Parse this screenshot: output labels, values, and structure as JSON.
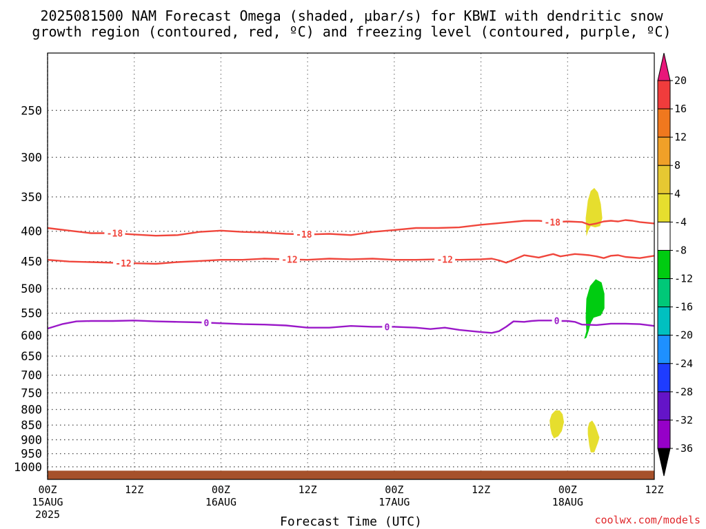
{
  "chart_data": {
    "type": "contour",
    "title_line1": "2025081500 NAM Forecast Omega (shaded, μbar/s) for KBWI with dendritic snow",
    "title_line2": "growth region (contoured, red, ºC) and freezing level (contoured, purple, ºC)",
    "xlabel": "Forecast Time (UTC)",
    "credit": "coolwx.com/models",
    "x_range_hours": [
      0,
      84
    ],
    "y_axis": {
      "scale": "log-pressure",
      "range_hPa": [
        1050,
        200
      ],
      "ticks": [
        250,
        300,
        350,
        400,
        450,
        500,
        550,
        600,
        650,
        700,
        750,
        800,
        850,
        900,
        950,
        1000
      ]
    },
    "x_ticks": [
      {
        "hour": 0,
        "line1": "00Z",
        "line2": "15AUG",
        "line3": "2025"
      },
      {
        "hour": 12,
        "line1": "12Z",
        "line2": "",
        "line3": ""
      },
      {
        "hour": 24,
        "line1": "00Z",
        "line2": "16AUG",
        "line3": ""
      },
      {
        "hour": 36,
        "line1": "12Z",
        "line2": "",
        "line3": ""
      },
      {
        "hour": 48,
        "line1": "00Z",
        "line2": "17AUG",
        "line3": ""
      },
      {
        "hour": 60,
        "line1": "12Z",
        "line2": "",
        "line3": ""
      },
      {
        "hour": 72,
        "line1": "00Z",
        "line2": "18AUG",
        "line3": ""
      },
      {
        "hour": 84,
        "line1": "12Z",
        "line2": "",
        "line3": ""
      }
    ],
    "grid": true,
    "contours": [
      {
        "level": "-18",
        "color": "#f0463c",
        "points": [
          [
            0,
            395
          ],
          [
            3,
            399
          ],
          [
            6,
            403
          ],
          [
            9,
            403
          ],
          [
            12,
            405
          ],
          [
            15,
            407
          ],
          [
            18,
            406
          ],
          [
            21,
            401
          ],
          [
            24,
            399
          ],
          [
            27,
            401
          ],
          [
            30,
            402
          ],
          [
            33,
            404
          ],
          [
            36,
            405
          ],
          [
            39,
            404
          ],
          [
            42,
            406
          ],
          [
            45,
            401
          ],
          [
            48,
            398
          ],
          [
            51,
            395
          ],
          [
            54,
            395
          ],
          [
            57,
            394
          ],
          [
            60,
            390
          ],
          [
            62,
            388
          ],
          [
            64,
            386
          ],
          [
            66,
            384
          ],
          [
            68,
            384
          ],
          [
            70,
            386
          ],
          [
            72,
            385
          ],
          [
            74,
            386
          ],
          [
            75,
            390
          ],
          [
            76,
            388
          ],
          [
            77,
            385
          ],
          [
            78,
            384
          ],
          [
            79,
            385
          ],
          [
            80,
            383
          ],
          [
            81,
            384
          ],
          [
            82,
            386
          ],
          [
            84,
            388
          ]
        ],
        "labels": [
          [
            9.3,
            "-18"
          ],
          [
            35.5,
            "-18"
          ],
          [
            69.9,
            "-18"
          ]
        ]
      },
      {
        "level": "-12",
        "color": "#f0463c",
        "points": [
          [
            0,
            447
          ],
          [
            3,
            450
          ],
          [
            6,
            451
          ],
          [
            9,
            452
          ],
          [
            12,
            453
          ],
          [
            15,
            454
          ],
          [
            18,
            451
          ],
          [
            21,
            449
          ],
          [
            24,
            447
          ],
          [
            27,
            447
          ],
          [
            30,
            445
          ],
          [
            33,
            446
          ],
          [
            36,
            447
          ],
          [
            39,
            445
          ],
          [
            42,
            446
          ],
          [
            45,
            445
          ],
          [
            48,
            447
          ],
          [
            51,
            447
          ],
          [
            54,
            446
          ],
          [
            57,
            447
          ],
          [
            60,
            446
          ],
          [
            61.5,
            445
          ],
          [
            62.5,
            448
          ],
          [
            63.5,
            452
          ],
          [
            64.5,
            447
          ],
          [
            66,
            439
          ],
          [
            67,
            441
          ],
          [
            68,
            443
          ],
          [
            69,
            440
          ],
          [
            70,
            437
          ],
          [
            71,
            441
          ],
          [
            72,
            439
          ],
          [
            73,
            437
          ],
          [
            74,
            438
          ],
          [
            75,
            439
          ],
          [
            76,
            441
          ],
          [
            77,
            444
          ],
          [
            78,
            440
          ],
          [
            79,
            439
          ],
          [
            80,
            442
          ],
          [
            82,
            444
          ],
          [
            84,
            440
          ]
        ],
        "labels": [
          [
            10.5,
            "-12"
          ],
          [
            33.5,
            "-12"
          ],
          [
            55,
            "-12"
          ]
        ]
      },
      {
        "level": "0",
        "color": "#9a18c8",
        "points": [
          [
            0,
            584
          ],
          [
            2,
            574
          ],
          [
            4,
            568
          ],
          [
            6,
            567
          ],
          [
            9,
            567
          ],
          [
            12,
            566
          ],
          [
            15,
            568
          ],
          [
            18,
            569
          ],
          [
            21,
            570
          ],
          [
            24,
            572
          ],
          [
            27,
            574
          ],
          [
            30,
            575
          ],
          [
            33,
            577
          ],
          [
            36,
            582
          ],
          [
            39,
            582
          ],
          [
            42,
            578
          ],
          [
            45,
            580
          ],
          [
            48,
            580
          ],
          [
            51,
            582
          ],
          [
            53,
            585
          ],
          [
            55,
            582
          ],
          [
            57,
            587
          ],
          [
            60,
            592
          ],
          [
            61.5,
            594
          ],
          [
            62.5,
            590
          ],
          [
            63.5,
            580
          ],
          [
            64.5,
            568
          ],
          [
            66,
            569
          ],
          [
            67,
            567
          ],
          [
            68,
            566
          ],
          [
            69,
            566
          ],
          [
            70,
            566
          ],
          [
            71,
            567
          ],
          [
            72,
            567
          ],
          [
            73,
            569
          ],
          [
            74,
            575
          ],
          [
            76,
            576
          ],
          [
            78,
            573
          ],
          [
            80,
            573
          ],
          [
            82,
            574
          ],
          [
            84,
            578
          ]
        ],
        "labels": [
          [
            22,
            "0"
          ],
          [
            47,
            "0"
          ],
          [
            70.5,
            "0"
          ]
        ]
      }
    ],
    "omega_shading": [
      {
        "value_range": "4 to 8",
        "color": "#e6de2e",
        "points": [
          [
            74.6,
            408
          ],
          [
            74.5,
            380
          ],
          [
            74.8,
            355
          ],
          [
            75.2,
            342
          ],
          [
            75.7,
            338
          ],
          [
            76.2,
            344
          ],
          [
            76.6,
            360
          ],
          [
            76.8,
            380
          ],
          [
            76.5,
            392
          ],
          [
            75.8,
            394
          ],
          [
            75.2,
            392
          ],
          [
            74.9,
            398
          ]
        ]
      },
      {
        "value_range": "-8 to -4",
        "color": "#00cc11",
        "points": [
          [
            74.3,
            608
          ],
          [
            74.6,
            590
          ],
          [
            74.5,
            560
          ],
          [
            74.6,
            520
          ],
          [
            75.1,
            495
          ],
          [
            75.9,
            482
          ],
          [
            76.7,
            488
          ],
          [
            77.1,
            510
          ],
          [
            77.1,
            540
          ],
          [
            76.6,
            555
          ],
          [
            75.6,
            560
          ],
          [
            75.2,
            572
          ],
          [
            74.9,
            590
          ],
          [
            74.6,
            605
          ]
        ]
      },
      {
        "value_range": "4 to 8",
        "color": "#e6de2e",
        "points": [
          [
            69.5,
            835
          ],
          [
            69.8,
            815
          ],
          [
            70.3,
            803
          ],
          [
            70.9,
            803
          ],
          [
            71.3,
            815
          ],
          [
            71.5,
            840
          ],
          [
            71.2,
            870
          ],
          [
            70.7,
            888
          ],
          [
            70.1,
            895
          ],
          [
            69.8,
            880
          ],
          [
            69.6,
            858
          ]
        ]
      },
      {
        "value_range": "4 to 8",
        "color": "#e6de2e",
        "points": [
          [
            74.8,
            860
          ],
          [
            75.0,
            842
          ],
          [
            75.4,
            835
          ],
          [
            75.8,
            850
          ],
          [
            76.1,
            870
          ],
          [
            76.4,
            892
          ],
          [
            76.2,
            910
          ],
          [
            75.7,
            945
          ],
          [
            75.2,
            945
          ],
          [
            75.0,
            920
          ],
          [
            74.9,
            900
          ],
          [
            74.8,
            880
          ]
        ]
      }
    ],
    "surface_band": {
      "color": "#a6512b",
      "top_hPa": 1015,
      "bottom_hPa": 1050
    },
    "colorbar": {
      "ticks": [
        "20",
        "16",
        "12",
        "8",
        "4",
        "-4",
        "-8",
        "-12",
        "-16",
        "-20",
        "-24",
        "-28",
        "-32",
        "-36"
      ],
      "colors": [
        "#e8177a",
        "#f03c3c",
        "#f0781e",
        "#f0a028",
        "#e6c832",
        "#e6de2e",
        "#ffffff",
        "#00cc11",
        "#00c878",
        "#00c0c0",
        "#1e90ff",
        "#1e3cff",
        "#6414c8",
        "#9600c8",
        "#aaaaaa",
        "#000000"
      ]
    }
  }
}
